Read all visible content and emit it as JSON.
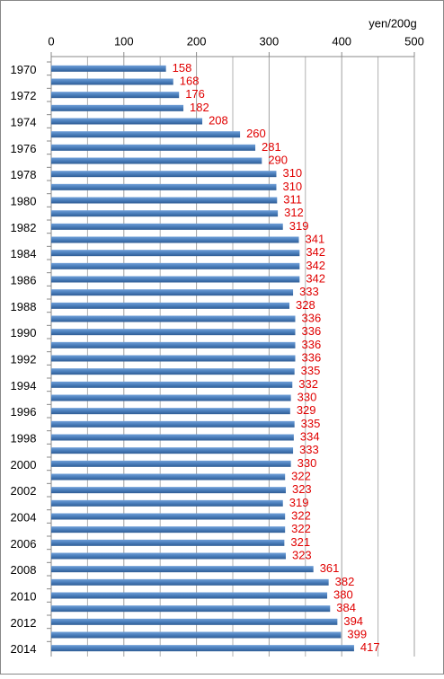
{
  "chart_data": {
    "type": "bar",
    "orientation": "horizontal",
    "x_unit_label": "yen/200g",
    "categories": [
      "1970",
      null,
      "1972",
      null,
      "1974",
      null,
      "1976",
      null,
      "1978",
      null,
      "1980",
      null,
      "1982",
      null,
      "1984",
      null,
      "1986",
      null,
      "1988",
      null,
      "1990",
      null,
      "1992",
      null,
      "1994",
      null,
      "1996",
      null,
      "1998",
      null,
      "2000",
      null,
      "2002",
      null,
      "2004",
      null,
      "2006",
      null,
      "2008",
      null,
      "2010",
      null,
      "2012",
      null,
      "2014"
    ],
    "values": [
      158,
      168,
      176,
      182,
      208,
      260,
      281,
      290,
      310,
      310,
      311,
      312,
      319,
      341,
      342,
      342,
      342,
      333,
      328,
      336,
      336,
      336,
      336,
      335,
      332,
      330,
      329,
      335,
      334,
      333,
      330,
      322,
      323,
      319,
      322,
      322,
      321,
      323,
      361,
      382,
      380,
      384,
      394,
      399,
      417
    ],
    "color": "#4a7ebb",
    "value_label_color": "#e00000",
    "xlim": [
      0,
      500
    ],
    "xticks": [
      0,
      100,
      200,
      300,
      400,
      500
    ],
    "minor_gridlines": [
      50,
      150,
      250,
      350,
      450
    ],
    "grid": true
  }
}
